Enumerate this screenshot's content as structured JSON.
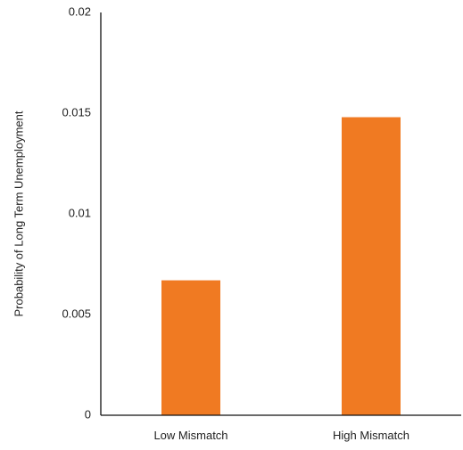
{
  "chart_data": {
    "type": "bar",
    "title": "",
    "xlabel": "",
    "ylabel": "Probability of Long Term Unemployment",
    "categories": [
      "Low Mismatch",
      "High Mismatch"
    ],
    "values": [
      0.0067,
      0.0148
    ],
    "ylim": [
      0,
      0.02
    ],
    "yticks": [
      "0",
      "0.005",
      "0.01",
      "0.015",
      "0.02"
    ],
    "ytick_values": [
      0,
      0.005,
      0.01,
      0.015,
      0.02
    ],
    "grid": false,
    "legend": "none",
    "bar_color": "#F07A22",
    "axis_color": "#111111"
  }
}
